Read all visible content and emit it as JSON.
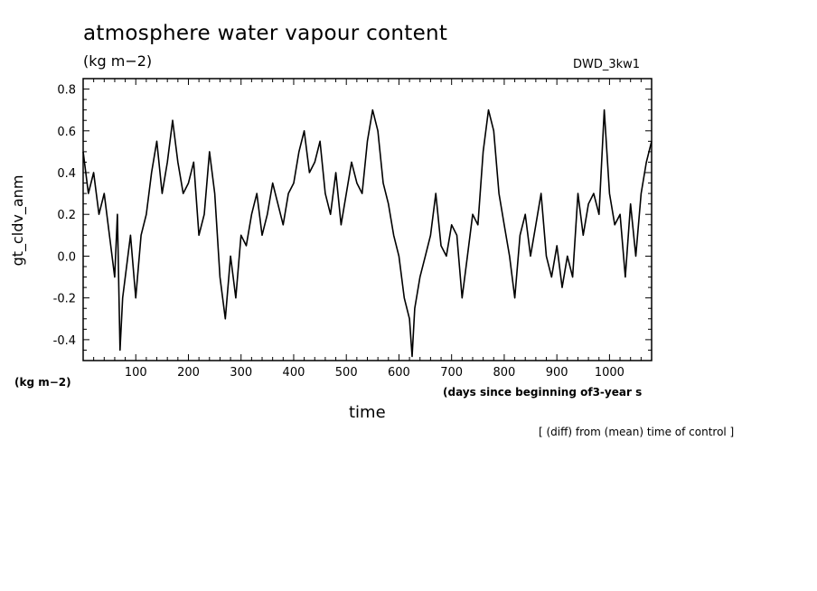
{
  "header": {
    "title": "atmosphere water vapour content",
    "units": "(kg m−2)",
    "run_id": "DWD_3kw1"
  },
  "axes": {
    "y_units": "(kg m−2)",
    "x_units": "(days since beginning of3-year s",
    "x_title": "time",
    "y_title": "gt_cldv_anm"
  },
  "footnote": "[ (diff) from (mean) time of control ]",
  "colors": {
    "line": "#000000",
    "background": "#ffffff"
  },
  "chart_data": {
    "type": "line",
    "title": "atmosphere water vapour content",
    "xlabel": "time",
    "ylabel": "gt_cldv_anm",
    "xlim": [
      0,
      1080
    ],
    "ylim": [
      -0.5,
      0.85
    ],
    "x_ticks": [
      100,
      200,
      300,
      400,
      500,
      600,
      700,
      800,
      900,
      1000
    ],
    "y_ticks": [
      -0.4,
      -0.2,
      0.0,
      0.2,
      0.4,
      0.6,
      0.8
    ],
    "y_tick_labels": [
      "-0.4",
      "-0.2",
      "0.0",
      "0.2",
      "0.4",
      "0.6",
      "0.8"
    ],
    "grid": false,
    "series": [
      {
        "x": [
          0,
          10,
          20,
          30,
          40,
          50,
          60,
          65,
          70,
          75,
          80,
          90,
          100,
          110,
          120,
          130,
          140,
          150,
          160,
          170,
          175,
          180,
          190,
          200,
          210,
          220,
          230,
          240,
          250,
          260,
          270,
          280,
          290,
          300,
          310,
          320,
          330,
          340,
          350,
          360,
          370,
          380,
          390,
          400,
          410,
          420,
          430,
          440,
          450,
          460,
          470,
          480,
          490,
          500,
          510,
          520,
          530,
          540,
          550,
          560,
          570,
          580,
          590,
          600,
          610,
          620,
          625,
          630,
          640,
          650,
          660,
          670,
          680,
          690,
          700,
          710,
          720,
          730,
          740,
          750,
          760,
          770,
          780,
          790,
          800,
          810,
          820,
          830,
          840,
          850,
          860,
          870,
          880,
          890,
          900,
          910,
          920,
          930,
          940,
          950,
          960,
          970,
          980,
          990,
          1000,
          1010,
          1020,
          1030,
          1040,
          1050,
          1060,
          1070,
          1080
        ],
        "y": [
          0.5,
          0.3,
          0.4,
          0.2,
          0.3,
          0.1,
          -0.1,
          0.2,
          -0.45,
          -0.2,
          -0.1,
          0.1,
          -0.2,
          0.1,
          0.2,
          0.4,
          0.55,
          0.3,
          0.45,
          0.65,
          0.55,
          0.45,
          0.3,
          0.35,
          0.45,
          0.1,
          0.2,
          0.5,
          0.3,
          -0.1,
          -0.3,
          0.0,
          -0.2,
          0.1,
          0.05,
          0.2,
          0.3,
          0.1,
          0.2,
          0.35,
          0.25,
          0.15,
          0.3,
          0.35,
          0.5,
          0.6,
          0.4,
          0.45,
          0.55,
          0.3,
          0.2,
          0.4,
          0.15,
          0.3,
          0.45,
          0.35,
          0.3,
          0.55,
          0.7,
          0.6,
          0.35,
          0.25,
          0.1,
          0.0,
          -0.2,
          -0.3,
          -0.48,
          -0.25,
          -0.1,
          0.0,
          0.1,
          0.3,
          0.05,
          0.0,
          0.15,
          0.1,
          -0.2,
          0.0,
          0.2,
          0.15,
          0.5,
          0.7,
          0.6,
          0.3,
          0.15,
          0.0,
          -0.2,
          0.1,
          0.2,
          0.0,
          0.15,
          0.3,
          0.0,
          -0.1,
          0.05,
          -0.15,
          0.0,
          -0.1,
          0.3,
          0.1,
          0.25,
          0.3,
          0.2,
          0.7,
          0.3,
          0.15,
          0.2,
          -0.1,
          0.25,
          0.0,
          0.3,
          0.45,
          0.55
        ]
      }
    ]
  }
}
